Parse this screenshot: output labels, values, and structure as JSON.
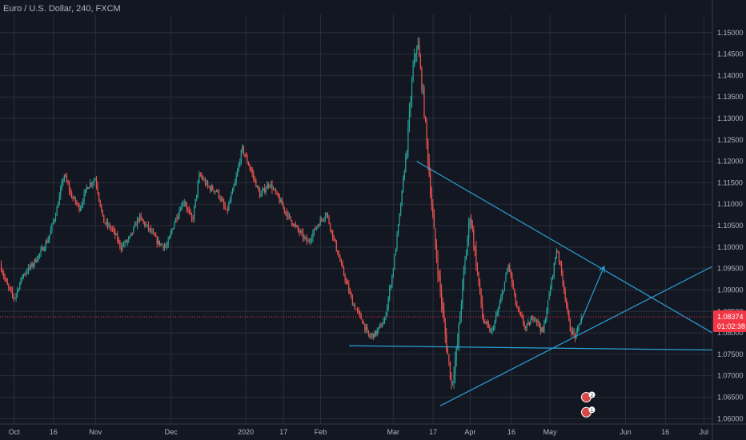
{
  "chart_data": {
    "type": "candlestick",
    "title": "Euro / U.S. Dollar, 240, FXCM",
    "ylim": [
      1.05875,
      1.15425
    ],
    "y_ticks": [
      "1.15000",
      "1.14500",
      "1.14000",
      "1.13500",
      "1.13000",
      "1.12500",
      "1.12000",
      "1.11500",
      "1.11000",
      "1.10500",
      "1.10000",
      "1.09500",
      "1.09000",
      "1.08500",
      "1.08000",
      "1.07500",
      "1.07000",
      "1.06500",
      "1.06000"
    ],
    "x_ticks": [
      {
        "label": "Oct",
        "t": 0.02
      },
      {
        "label": "16",
        "t": 0.075
      },
      {
        "label": "Nov",
        "t": 0.134
      },
      {
        "label": "Dec",
        "t": 0.24
      },
      {
        "label": "2020",
        "t": 0.345
      },
      {
        "label": "17",
        "t": 0.398
      },
      {
        "label": "Feb",
        "t": 0.45
      },
      {
        "label": "Mar",
        "t": 0.552
      },
      {
        "label": "17",
        "t": 0.608
      },
      {
        "label": "Apr",
        "t": 0.66
      },
      {
        "label": "16",
        "t": 0.718
      },
      {
        "label": "May",
        "t": 0.772
      },
      {
        "label": "Jun",
        "t": 0.878
      },
      {
        "label": "16",
        "t": 0.934
      },
      {
        "label": "Jul",
        "t": 0.988
      }
    ],
    "price_path": [
      [
        0.0,
        1.096
      ],
      [
        0.01,
        1.091
      ],
      [
        0.02,
        1.088
      ],
      [
        0.032,
        1.0935
      ],
      [
        0.046,
        1.096
      ],
      [
        0.058,
        1.099
      ],
      [
        0.068,
        1.102
      ],
      [
        0.08,
        1.109
      ],
      [
        0.09,
        1.117
      ],
      [
        0.1,
        1.112
      ],
      [
        0.112,
        1.109
      ],
      [
        0.122,
        1.114
      ],
      [
        0.134,
        1.116
      ],
      [
        0.145,
        1.106
      ],
      [
        0.158,
        1.104
      ],
      [
        0.17,
        1.1
      ],
      [
        0.182,
        1.102
      ],
      [
        0.195,
        1.107
      ],
      [
        0.21,
        1.104
      ],
      [
        0.222,
        1.101
      ],
      [
        0.234,
        1.1
      ],
      [
        0.245,
        1.106
      ],
      [
        0.258,
        1.111
      ],
      [
        0.27,
        1.106
      ],
      [
        0.28,
        1.117
      ],
      [
        0.292,
        1.114
      ],
      [
        0.305,
        1.113
      ],
      [
        0.318,
        1.108
      ],
      [
        0.33,
        1.115
      ],
      [
        0.34,
        1.123
      ],
      [
        0.352,
        1.118
      ],
      [
        0.365,
        1.112
      ],
      [
        0.378,
        1.115
      ],
      [
        0.392,
        1.111
      ],
      [
        0.405,
        1.107
      ],
      [
        0.418,
        1.104
      ],
      [
        0.432,
        1.101
      ],
      [
        0.445,
        1.105
      ],
      [
        0.458,
        1.108
      ],
      [
        0.47,
        1.101
      ],
      [
        0.482,
        1.094
      ],
      [
        0.495,
        1.087
      ],
      [
        0.508,
        1.083
      ],
      [
        0.518,
        1.079
      ],
      [
        0.528,
        1.08
      ],
      [
        0.54,
        1.083
      ],
      [
        0.552,
        1.095
      ],
      [
        0.562,
        1.109
      ],
      [
        0.572,
        1.125
      ],
      [
        0.58,
        1.142
      ],
      [
        0.586,
        1.148
      ],
      [
        0.594,
        1.135
      ],
      [
        0.602,
        1.118
      ],
      [
        0.61,
        1.102
      ],
      [
        0.618,
        1.09
      ],
      [
        0.626,
        1.078
      ],
      [
        0.634,
        1.068
      ],
      [
        0.642,
        1.077
      ],
      [
        0.65,
        1.092
      ],
      [
        0.66,
        1.108
      ],
      [
        0.668,
        1.097
      ],
      [
        0.678,
        1.083
      ],
      [
        0.69,
        1.08
      ],
      [
        0.702,
        1.087
      ],
      [
        0.714,
        1.096
      ],
      [
        0.725,
        1.086
      ],
      [
        0.738,
        1.081
      ],
      [
        0.75,
        1.084
      ],
      [
        0.762,
        1.08
      ],
      [
        0.772,
        1.09
      ],
      [
        0.782,
        1.1
      ],
      [
        0.792,
        1.09
      ],
      [
        0.8,
        1.081
      ],
      [
        0.808,
        1.079
      ],
      [
        0.816,
        1.0837
      ]
    ],
    "current_price": "1.08374",
    "countdown": "01:02:38",
    "trendlines": [
      {
        "from": [
          0.585,
          1.12
        ],
        "to": [
          1.0,
          1.08
        ]
      },
      {
        "from": [
          0.618,
          1.063
        ],
        "to": [
          1.0,
          1.0955
        ]
      },
      {
        "from": [
          0.49,
          1.077
        ],
        "to": [
          1.0,
          1.076
        ]
      }
    ],
    "arrow": {
      "from": [
        0.815,
        1.0825
      ],
      "to": [
        0.848,
        1.0955
      ]
    },
    "colors": {
      "up": "#26a69a",
      "down": "#ef5350",
      "line": "#2a9fd6",
      "price": "#f23645",
      "grid": "#2a2e39",
      "text": "#b2b5be"
    },
    "event_markers": [
      {
        "t": 0.823,
        "y": 1.065,
        "badge": "2"
      },
      {
        "t": 0.823,
        "y": 1.0615,
        "badge": "1"
      }
    ]
  }
}
